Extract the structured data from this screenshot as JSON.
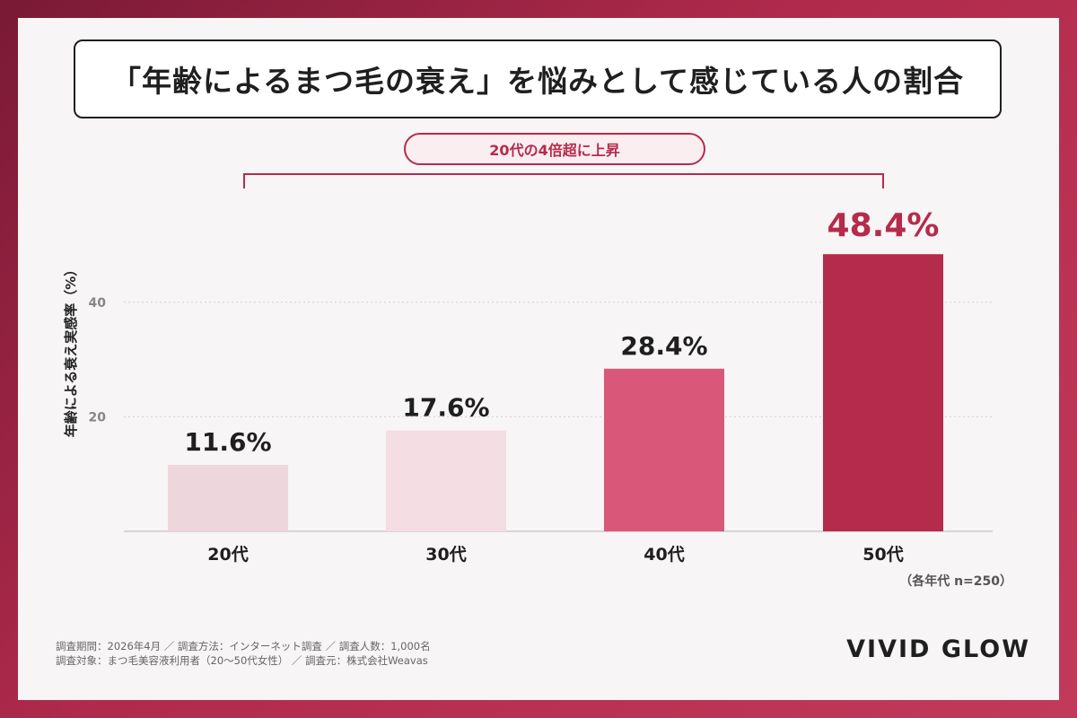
{
  "title": "「年齢によるまつ毛の衰え」を悩みとして感じている人の割合",
  "callout": "20代の4倍超に上昇",
  "colors": {
    "bar_20": "#eed6dd",
    "bar_30": "#f5dde4",
    "bar_40": "#d9587a",
    "bar_50": "#b52b4c",
    "accent": "#b52b4c"
  },
  "chart_data": {
    "type": "bar",
    "categories": [
      "20代",
      "30代",
      "40代",
      "50代"
    ],
    "values": [
      11.6,
      17.6,
      28.4,
      48.4
    ],
    "value_labels": [
      "11.6%",
      "17.6%",
      "28.4%",
      "48.4%"
    ],
    "ylabel": "年齢による衰え実感率（%）",
    "yticks": [
      20,
      40
    ],
    "sample_note": "（各年代 n=250）",
    "grid": true
  },
  "footnote": {
    "line1": "調査期間：2026年4月 ／ 調査方法：インターネット調査 ／ 調査人数：1,000名",
    "line2": "調査対象：まつ毛美容液利用者（20〜50代女性） ／ 調査元：株式会社Weavas"
  },
  "brand": "VIVID GLOW"
}
